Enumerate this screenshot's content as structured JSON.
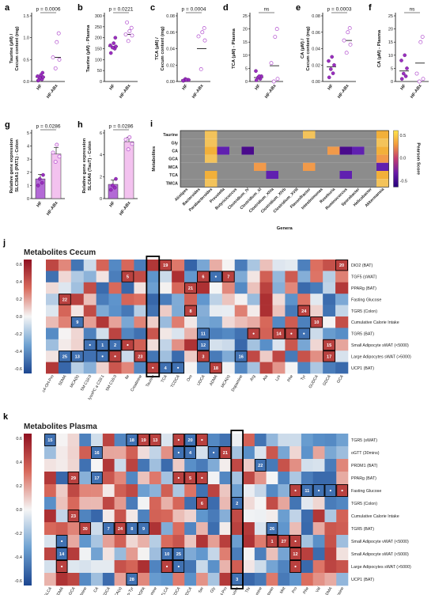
{
  "panels": {
    "a": {
      "letter": "a",
      "ylabel": [
        "Taurine (µM) /",
        "Cecum content (mg)"
      ],
      "groups": [
        "HF",
        "HF-ABx"
      ],
      "p": "p = 0.0006",
      "yticks": [
        "0.0",
        "0.5",
        "1.0",
        "1.5"
      ],
      "ymax": 1.5
    },
    "b": {
      "letter": "b",
      "ylabel": [
        "Taurine (µM) - Plasma"
      ],
      "groups": [
        "HF",
        "HF-ABx"
      ],
      "p": "p = 0.0221",
      "yticks": [
        "0",
        "50",
        "100",
        "150",
        "200",
        "250",
        "300"
      ],
      "ymax": 300
    },
    "c": {
      "letter": "c",
      "ylabel": [
        "TCA (µM) /",
        "Cecum content (mg)"
      ],
      "groups": [
        "HF",
        "HF-ABx"
      ],
      "p": "p = 0.0004",
      "yticks": [
        "0.00",
        "0.02",
        "0.04",
        "0.06",
        "0.08"
      ],
      "ymax": 0.08
    },
    "d": {
      "letter": "d",
      "ylabel": [
        "TCA (µM) - Plasma"
      ],
      "groups": [
        "HF",
        "HF-ABx"
      ],
      "p": "ns",
      "yticks": [
        "0",
        "5",
        "10",
        "15",
        "20",
        "25"
      ],
      "ymax": 25
    },
    "e": {
      "letter": "e",
      "ylabel": [
        "CA (µM) /",
        "Cecum content (mg)"
      ],
      "groups": [
        "HF",
        "HF-ABx"
      ],
      "p": "p = 0.0003",
      "yticks": [
        "0.00",
        "0.02",
        "0.04",
        "0.06",
        "0.08"
      ],
      "ymax": 0.08
    },
    "f": {
      "letter": "f",
      "ylabel": [
        "CA (µM) - Plasma"
      ],
      "groups": [
        "HF",
        "HF-ABx"
      ],
      "p": "ns",
      "yticks": [
        "0",
        "5",
        "10",
        "15",
        "20",
        "25"
      ],
      "ymax": 25
    },
    "g": {
      "letter": "g",
      "ylabel": [
        "Relative gene expression",
        "SLC36A1 (PAT1) - Colon"
      ],
      "groups": [
        "HF",
        "HF-ABx"
      ],
      "p": "p = 0.0286",
      "yticks": [
        "0",
        "1",
        "2",
        "3",
        "4",
        "5"
      ],
      "ymax": 5
    },
    "h": {
      "letter": "h",
      "ylabel": [
        "Relative gene expression",
        "SLC6A6 (TauT) - Colon"
      ],
      "groups": [
        "HF",
        "HF-ABx"
      ],
      "p": "p = 0.0286",
      "yticks": [
        "0",
        "2",
        "4",
        "6"
      ],
      "ymax": 7
    }
  },
  "scatter_points": {
    "a": {
      "HF": [
        0.02,
        0.05,
        0.08,
        0.1,
        0.12,
        0.15,
        0.2,
        0.03
      ],
      "ABx": [
        0.3,
        0.5,
        0.55,
        0.9,
        1.1
      ],
      "mean": [
        0.1,
        0.55
      ]
    },
    "b": {
      "HF": [
        130,
        150,
        155,
        160,
        165,
        175,
        200
      ],
      "ABx": [
        185,
        210,
        215,
        230,
        245,
        270
      ],
      "mean": [
        160,
        215
      ]
    },
    "c": {
      "HF": [
        0.001,
        0.002,
        0.003,
        0.002,
        0.001,
        0.002
      ],
      "ABx": [
        0.015,
        0.05,
        0.055,
        0.06,
        0.065
      ],
      "mean": [
        0.002,
        0.04
      ]
    },
    "d": {
      "HF": [
        0.5,
        1,
        1.5,
        2,
        4,
        2
      ],
      "ABx": [
        0,
        1,
        7,
        17,
        20
      ],
      "mean": [
        1.5,
        6
      ]
    },
    "e": {
      "HF": [
        0.005,
        0.01,
        0.015,
        0.02,
        0.025,
        0.03
      ],
      "ABx": [
        0.035,
        0.045,
        0.05,
        0.06,
        0.065
      ],
      "mean": [
        0.018,
        0.05
      ]
    },
    "f": {
      "HF": [
        1,
        2,
        3,
        5,
        8,
        10
      ],
      "ABx": [
        0,
        1,
        3,
        15,
        17
      ],
      "mean": [
        4,
        7
      ]
    },
    "g": {
      "HF": [
        1,
        1.2,
        1.5,
        1.8
      ],
      "ABx": [
        2.8,
        3.2,
        3.5,
        4.1
      ],
      "bars": [
        1.5,
        3.4
      ],
      "err": [
        0.35,
        0.5
      ]
    },
    "h": {
      "HF": [
        0.8,
        1,
        1.2,
        1.8
      ],
      "ABx": [
        4.5,
        5,
        5.4,
        5.6
      ],
      "bars": [
        1.3,
        5.2
      ],
      "err": [
        0.4,
        0.4
      ]
    }
  },
  "panel_i": {
    "letter": "i",
    "ylabel": "Metabolites",
    "xlabel": "Genera",
    "colorbar_label": "Pearson Score",
    "colorbar_ticks": [
      "0.5",
      "0.0",
      "-0.5"
    ],
    "rows": [
      "Taurine",
      "Gly",
      "CA",
      "GCA",
      "MCA",
      "TCA",
      "TMCA"
    ],
    "cols": [
      "Alistipes",
      "Bacteroides",
      "Parabacteroides",
      "Prevotella",
      "Butyricicoccus",
      "Clostridium_IV",
      "Clostridium_XI",
      "Clostridium_XIVa",
      "Clostridium_XIVb",
      "Clostridium_XVIII",
      "Flavonifractor",
      "Intestinimonas",
      "Roseburia",
      "Ruminococcus",
      "Sporobacter",
      "Helicobacter",
      "Akkermansia"
    ],
    "colored": [
      [
        0,
        2,
        0.5
      ],
      [
        1,
        2,
        0.45
      ],
      [
        2,
        2,
        0.55
      ],
      [
        2,
        3,
        -0.5
      ],
      [
        2,
        5,
        -0.55
      ],
      [
        2,
        13,
        -0.55
      ],
      [
        2,
        14,
        -0.5
      ],
      [
        3,
        2,
        0.45
      ],
      [
        4,
        6,
        0.35
      ],
      [
        4,
        10,
        0.4
      ],
      [
        5,
        2,
        0.55
      ],
      [
        5,
        7,
        -0.5
      ],
      [
        5,
        13,
        -0.5
      ],
      [
        6,
        2,
        0.5
      ],
      [
        0,
        16,
        0.55
      ],
      [
        1,
        16,
        0.45
      ],
      [
        2,
        16,
        0.6
      ],
      [
        3,
        16,
        0.35
      ],
      [
        4,
        16,
        -0.5
      ],
      [
        5,
        16,
        0.55
      ],
      [
        6,
        16,
        0.45
      ],
      [
        0,
        10,
        0.45
      ],
      [
        2,
        12,
        0.3
      ]
    ]
  },
  "panel_j": {
    "letter": "j",
    "title": "Metabolites Cecum",
    "rows": [
      "DIO2 (BAT)",
      "TGF5 (sWAT)",
      "PPARg (BAT)",
      "Fasting Glucose",
      "TGR5 (Colon)",
      "Cumulative Calorie Intake",
      "TGR5 (BAT)",
      "Small Adipocyte sWAT (<5000)",
      "Large Adipocytes sWAT (>5000)",
      "UCP1 (BAT)"
    ],
    "cols": [
      "c4-OH-Pro",
      "SDMA",
      "MCA(b)",
      "SM C18:0",
      "lysoPC a C28:1",
      "SM C16:0",
      "Ile",
      "Creatinine",
      "Taurine",
      "TCA",
      "TCDCA",
      "Orn",
      "UDCA",
      "ADMA",
      "MCA(o)",
      "Dopamine",
      "Arg",
      "Ala",
      "Lys",
      "Phe",
      "Tyr",
      "GUDCA",
      "GDCA",
      "GCA"
    ],
    "yticks": [
      "0.6",
      "0.4",
      "0.2",
      "0.0",
      "-0.2",
      "-0.4",
      "-0.6"
    ],
    "boxed_col": 8,
    "numbers": [
      [
        0,
        9,
        "19"
      ],
      [
        0,
        23,
        "20"
      ],
      [
        1,
        6,
        "5"
      ],
      [
        1,
        12,
        "6"
      ],
      [
        1,
        14,
        "7"
      ],
      [
        2,
        11,
        "21"
      ],
      [
        3,
        1,
        "22"
      ],
      [
        4,
        11,
        "8"
      ],
      [
        4,
        20,
        "24"
      ],
      [
        5,
        2,
        "9"
      ],
      [
        5,
        21,
        "10"
      ],
      [
        6,
        12,
        "11"
      ],
      [
        6,
        18,
        "14"
      ],
      [
        7,
        4,
        "1"
      ],
      [
        7,
        5,
        "2"
      ],
      [
        7,
        12,
        "12"
      ],
      [
        7,
        22,
        "15"
      ],
      [
        8,
        1,
        "25"
      ],
      [
        8,
        2,
        "13"
      ],
      [
        8,
        7,
        "23"
      ],
      [
        8,
        12,
        "3"
      ],
      [
        8,
        15,
        "16"
      ],
      [
        8,
        22,
        "17"
      ],
      [
        9,
        9,
        "4"
      ],
      [
        9,
        13,
        "18"
      ]
    ],
    "dots": [
      [
        1,
        13
      ],
      [
        6,
        16
      ],
      [
        6,
        19
      ],
      [
        6,
        20
      ],
      [
        7,
        3
      ],
      [
        7,
        6
      ],
      [
        8,
        4
      ],
      [
        8,
        5
      ],
      [
        9,
        8
      ],
      [
        9,
        10
      ]
    ]
  },
  "panel_k": {
    "letter": "k",
    "title": "Metabolites Plasma",
    "rows": [
      "TGR5 (sWAT)",
      "oGTT (30mins)",
      "PRDM1 (BAT)",
      "PPARg (BAT)",
      "Fasting Glucose",
      "TGR5 (Colon)",
      "Cumulative Calorie Intake",
      "TGR5 (BAT)",
      "Small Adipocyte vWAT (<5000)",
      "Small Adipocyte sWAT (<5000)",
      "Large Adipocytes sWAT (>5000)",
      "UCP1 (BAT)"
    ],
    "cols": [
      "GLCA",
      "SDMA",
      "GCA",
      "Creatinine",
      "CA",
      "CDCA",
      "MCA(o)",
      "Nitro-Tyr",
      "DOPA",
      "Dopamine",
      "TLCA",
      "GDCA",
      "GUDCA",
      "Ser",
      "Gly",
      "t4-OH-Pro",
      "Taurine",
      "Thr",
      "Histamine",
      "Serotonin",
      "Met",
      "Pro",
      "Phe",
      "Val",
      "ADMA",
      "Carnosine"
    ],
    "yticks": [
      "0.6",
      "0.4",
      "0.2",
      "0.0",
      "-0.2",
      "-0.4",
      "-0.6"
    ],
    "boxed_col": 16,
    "numbers": [
      [
        0,
        0,
        "15"
      ],
      [
        0,
        7,
        "18"
      ],
      [
        0,
        8,
        "19"
      ],
      [
        0,
        9,
        "13"
      ],
      [
        0,
        12,
        "20"
      ],
      [
        1,
        4,
        "16"
      ],
      [
        1,
        12,
        "4"
      ],
      [
        1,
        15,
        "21"
      ],
      [
        2,
        18,
        "22"
      ],
      [
        3,
        2,
        "29"
      ],
      [
        3,
        4,
        "17"
      ],
      [
        3,
        12,
        "5"
      ],
      [
        4,
        22,
        "11"
      ],
      [
        5,
        13,
        "6"
      ],
      [
        5,
        16,
        "2"
      ],
      [
        6,
        2,
        "23"
      ],
      [
        7,
        3,
        "30"
      ],
      [
        7,
        5,
        "7"
      ],
      [
        7,
        6,
        "24"
      ],
      [
        7,
        7,
        "8"
      ],
      [
        7,
        8,
        "9"
      ],
      [
        7,
        19,
        "26"
      ],
      [
        8,
        19,
        "1"
      ],
      [
        8,
        20,
        "27"
      ],
      [
        9,
        1,
        "14"
      ],
      [
        9,
        10,
        "10"
      ],
      [
        9,
        11,
        "25"
      ],
      [
        9,
        21,
        "12"
      ],
      [
        11,
        7,
        "28"
      ],
      [
        11,
        16,
        "3"
      ]
    ],
    "dots": [
      [
        0,
        11
      ],
      [
        0,
        13
      ],
      [
        1,
        11
      ],
      [
        1,
        14
      ],
      [
        3,
        11
      ],
      [
        3,
        13
      ],
      [
        4,
        21
      ],
      [
        4,
        23
      ],
      [
        4,
        24
      ],
      [
        4,
        25
      ],
      [
        8,
        1
      ],
      [
        8,
        21
      ],
      [
        10,
        1
      ],
      [
        10,
        10
      ],
      [
        10,
        11
      ],
      [
        10,
        21
      ]
    ]
  },
  "colors": {
    "hf_fill": "#9b2fc0",
    "abx_fill": "#ffffff",
    "abx_edge": "#b24fcf",
    "bar_hf": "#b36ad6",
    "bar_abx": "#f3c2ef",
    "pos": "#a50f15",
    "neg": "#1f5fa8",
    "neutral": "#f3f3f3",
    "box": "#000000"
  }
}
